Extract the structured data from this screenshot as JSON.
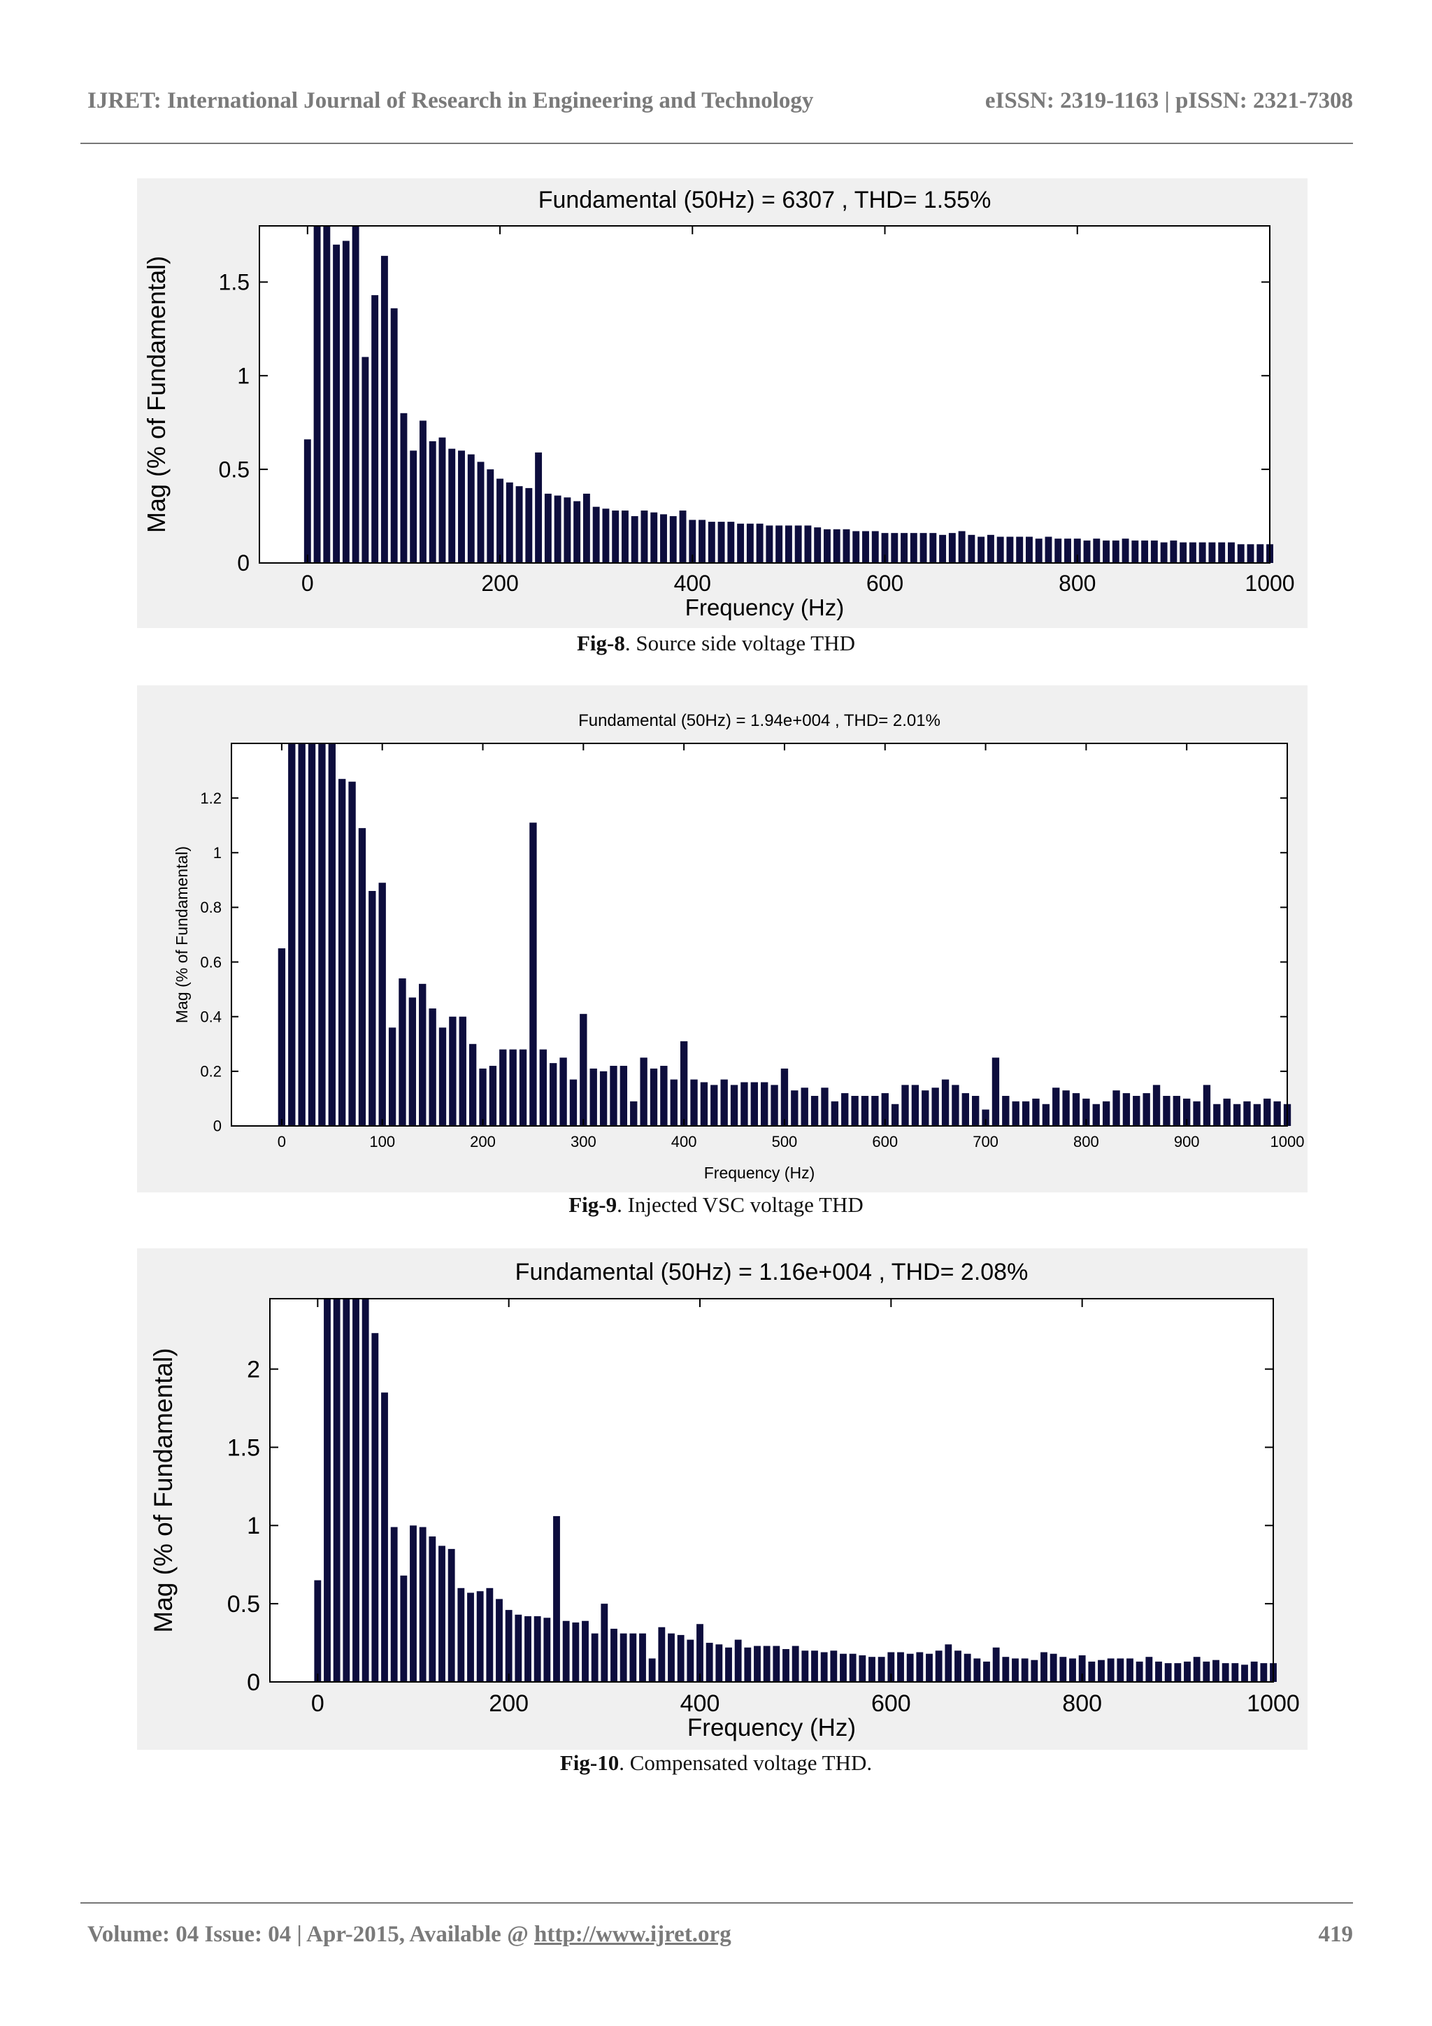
{
  "header": {
    "journal": "IJRET: International Journal of Research in Engineering and Technology",
    "issn": "eISSN: 2319-1163 | pISSN: 2321-7308"
  },
  "figures": [
    {
      "label": "Fig-8",
      "caption": ".  Source side voltage THD"
    },
    {
      "label": "Fig-9",
      "caption": ".  Injected VSC voltage THD"
    },
    {
      "label": "Fig-10",
      "caption": ".  Compensated voltage THD."
    }
  ],
  "footer": {
    "volume": "Volume: 04 Issue: 04 | Apr-2015, Available @ ",
    "link": "http://www.ijret.org",
    "page": "419"
  },
  "colors": {
    "bar": "#0d0d3d",
    "panel": "#f0f0f0"
  },
  "chart_data": [
    {
      "type": "bar",
      "title": "Fundamental (50Hz) = 6307  , THD= 1.55%",
      "xlabel": "Frequency (Hz)",
      "ylabel": "Mag (% of Fundamental)",
      "xlim": [
        -50,
        1000
      ],
      "ylim": [
        0,
        1.8
      ],
      "xticks": [
        "0",
        "200",
        "400",
        "600",
        "800",
        "1000"
      ],
      "xtick_values": [
        0,
        200,
        400,
        600,
        800,
        1000
      ],
      "yticks": [
        "0",
        "0.5",
        "1",
        "1.5"
      ],
      "ytick_values": [
        0,
        0.5,
        1,
        1.5
      ],
      "bar_step_hz": 10,
      "x": [
        0,
        10,
        20,
        30,
        40,
        50,
        60,
        70,
        80,
        90,
        100,
        110,
        120,
        130,
        140,
        150,
        160,
        170,
        180,
        190,
        200,
        210,
        220,
        230,
        240,
        250,
        260,
        270,
        280,
        290,
        300,
        310,
        320,
        330,
        340,
        350,
        360,
        370,
        380,
        390,
        400,
        410,
        420,
        430,
        440,
        450,
        460,
        470,
        480,
        490,
        500,
        510,
        520,
        530,
        540,
        550,
        560,
        570,
        580,
        590,
        600,
        610,
        620,
        630,
        640,
        650,
        660,
        670,
        680,
        690,
        700,
        710,
        720,
        730,
        740,
        750,
        760,
        770,
        780,
        790,
        800,
        810,
        820,
        830,
        840,
        850,
        860,
        870,
        880,
        890,
        900,
        910,
        920,
        930,
        940,
        950,
        960,
        970,
        980,
        990,
        1000
      ],
      "values": [
        0.66,
        1.8,
        1.8,
        1.7,
        1.72,
        1.8,
        1.1,
        1.43,
        1.64,
        1.36,
        0.8,
        0.6,
        0.76,
        0.65,
        0.67,
        0.61,
        0.6,
        0.58,
        0.54,
        0.5,
        0.45,
        0.43,
        0.41,
        0.4,
        0.59,
        0.37,
        0.36,
        0.35,
        0.33,
        0.37,
        0.3,
        0.29,
        0.28,
        0.28,
        0.25,
        0.28,
        0.27,
        0.26,
        0.25,
        0.28,
        0.23,
        0.23,
        0.22,
        0.22,
        0.22,
        0.21,
        0.21,
        0.21,
        0.2,
        0.2,
        0.2,
        0.2,
        0.2,
        0.19,
        0.18,
        0.18,
        0.18,
        0.17,
        0.17,
        0.17,
        0.16,
        0.16,
        0.16,
        0.16,
        0.16,
        0.16,
        0.15,
        0.16,
        0.17,
        0.15,
        0.14,
        0.15,
        0.14,
        0.14,
        0.14,
        0.14,
        0.13,
        0.14,
        0.13,
        0.13,
        0.13,
        0.12,
        0.13,
        0.12,
        0.12,
        0.13,
        0.12,
        0.12,
        0.12,
        0.11,
        0.12,
        0.11,
        0.11,
        0.11,
        0.11,
        0.11,
        0.11,
        0.1,
        0.1,
        0.1,
        0.1
      ]
    },
    {
      "type": "bar",
      "title": "Fundamental (50Hz) = 1.94e+004 , THD= 2.01%",
      "xlabel": "Frequency (Hz)",
      "ylabel": "Mag (% of Fundamental)",
      "xlim": [
        -50,
        1000
      ],
      "ylim": [
        0,
        1.4
      ],
      "xticks": [
        "0",
        "100",
        "200",
        "300",
        "400",
        "500",
        "600",
        "700",
        "800",
        "900",
        "1000"
      ],
      "xtick_values": [
        0,
        100,
        200,
        300,
        400,
        500,
        600,
        700,
        800,
        900,
        1000
      ],
      "yticks": [
        "0",
        "0.2",
        "0.4",
        "0.6",
        "0.8",
        "1",
        "1.2"
      ],
      "ytick_values": [
        0,
        0.2,
        0.4,
        0.6,
        0.8,
        1.0,
        1.2
      ],
      "bar_step_hz": 10,
      "x": [
        0,
        10,
        20,
        30,
        40,
        50,
        60,
        70,
        80,
        90,
        100,
        110,
        120,
        130,
        140,
        150,
        160,
        170,
        180,
        190,
        200,
        210,
        220,
        230,
        240,
        250,
        260,
        270,
        280,
        290,
        300,
        310,
        320,
        330,
        340,
        350,
        360,
        370,
        380,
        390,
        400,
        410,
        420,
        430,
        440,
        450,
        460,
        470,
        480,
        490,
        500,
        510,
        520,
        530,
        540,
        550,
        560,
        570,
        580,
        590,
        600,
        610,
        620,
        630,
        640,
        650,
        660,
        670,
        680,
        690,
        700,
        710,
        720,
        730,
        740,
        750,
        760,
        770,
        780,
        790,
        800,
        810,
        820,
        830,
        840,
        850,
        860,
        870,
        880,
        890,
        900,
        910,
        920,
        930,
        940,
        950,
        960,
        970,
        980,
        990,
        1000
      ],
      "values": [
        0.65,
        1.4,
        1.4,
        1.4,
        1.4,
        1.4,
        1.27,
        1.26,
        1.09,
        0.86,
        0.89,
        0.36,
        0.54,
        0.47,
        0.52,
        0.43,
        0.36,
        0.4,
        0.4,
        0.3,
        0.21,
        0.22,
        0.28,
        0.28,
        0.28,
        1.11,
        0.28,
        0.23,
        0.25,
        0.17,
        0.41,
        0.21,
        0.2,
        0.22,
        0.22,
        0.09,
        0.25,
        0.21,
        0.22,
        0.17,
        0.31,
        0.17,
        0.16,
        0.15,
        0.17,
        0.15,
        0.16,
        0.16,
        0.16,
        0.15,
        0.21,
        0.13,
        0.14,
        0.11,
        0.14,
        0.09,
        0.12,
        0.11,
        0.11,
        0.11,
        0.12,
        0.08,
        0.15,
        0.15,
        0.13,
        0.14,
        0.17,
        0.15,
        0.12,
        0.11,
        0.06,
        0.25,
        0.11,
        0.09,
        0.09,
        0.1,
        0.08,
        0.14,
        0.13,
        0.12,
        0.1,
        0.08,
        0.09,
        0.13,
        0.12,
        0.11,
        0.12,
        0.15,
        0.11,
        0.11,
        0.1,
        0.09,
        0.15,
        0.08,
        0.1,
        0.08,
        0.09,
        0.08,
        0.1,
        0.09,
        0.08
      ]
    },
    {
      "type": "bar",
      "title": "Fundamental (50Hz) = 1.16e+004 , THD= 2.08%",
      "xlabel": "Frequency (Hz)",
      "ylabel": "Mag (% of Fundamental)",
      "xlim": [
        -50,
        1000
      ],
      "ylim": [
        0,
        2.45
      ],
      "xticks": [
        "0",
        "200",
        "400",
        "600",
        "800",
        "1000"
      ],
      "xtick_values": [
        0,
        200,
        400,
        600,
        800,
        1000
      ],
      "yticks": [
        "0",
        "0.5",
        "1",
        "1.5",
        "2"
      ],
      "ytick_values": [
        0,
        0.5,
        1,
        1.5,
        2
      ],
      "bar_step_hz": 10,
      "x": [
        0,
        10,
        20,
        30,
        40,
        50,
        60,
        70,
        80,
        90,
        100,
        110,
        120,
        130,
        140,
        150,
        160,
        170,
        180,
        190,
        200,
        210,
        220,
        230,
        240,
        250,
        260,
        270,
        280,
        290,
        300,
        310,
        320,
        330,
        340,
        350,
        360,
        370,
        380,
        390,
        400,
        410,
        420,
        430,
        440,
        450,
        460,
        470,
        480,
        490,
        500,
        510,
        520,
        530,
        540,
        550,
        560,
        570,
        580,
        590,
        600,
        610,
        620,
        630,
        640,
        650,
        660,
        670,
        680,
        690,
        700,
        710,
        720,
        730,
        740,
        750,
        760,
        770,
        780,
        790,
        800,
        810,
        820,
        830,
        840,
        850,
        860,
        870,
        880,
        890,
        900,
        910,
        920,
        930,
        940,
        950,
        960,
        970,
        980,
        990,
        1000
      ],
      "values": [
        0.65,
        2.45,
        2.45,
        2.45,
        2.45,
        2.45,
        2.23,
        1.85,
        0.99,
        0.68,
        1.0,
        0.99,
        0.93,
        0.87,
        0.85,
        0.6,
        0.57,
        0.58,
        0.6,
        0.53,
        0.46,
        0.43,
        0.42,
        0.42,
        0.41,
        1.06,
        0.39,
        0.38,
        0.39,
        0.31,
        0.5,
        0.34,
        0.31,
        0.31,
        0.31,
        0.15,
        0.35,
        0.31,
        0.3,
        0.27,
        0.37,
        0.25,
        0.24,
        0.22,
        0.27,
        0.22,
        0.23,
        0.23,
        0.23,
        0.21,
        0.23,
        0.2,
        0.2,
        0.19,
        0.2,
        0.18,
        0.18,
        0.17,
        0.16,
        0.16,
        0.19,
        0.19,
        0.18,
        0.19,
        0.18,
        0.2,
        0.24,
        0.2,
        0.18,
        0.15,
        0.13,
        0.22,
        0.16,
        0.15,
        0.15,
        0.14,
        0.19,
        0.18,
        0.16,
        0.15,
        0.17,
        0.13,
        0.14,
        0.15,
        0.15,
        0.15,
        0.13,
        0.16,
        0.13,
        0.12,
        0.12,
        0.13,
        0.16,
        0.13,
        0.14,
        0.12,
        0.12,
        0.11,
        0.13,
        0.12,
        0.12
      ]
    }
  ]
}
